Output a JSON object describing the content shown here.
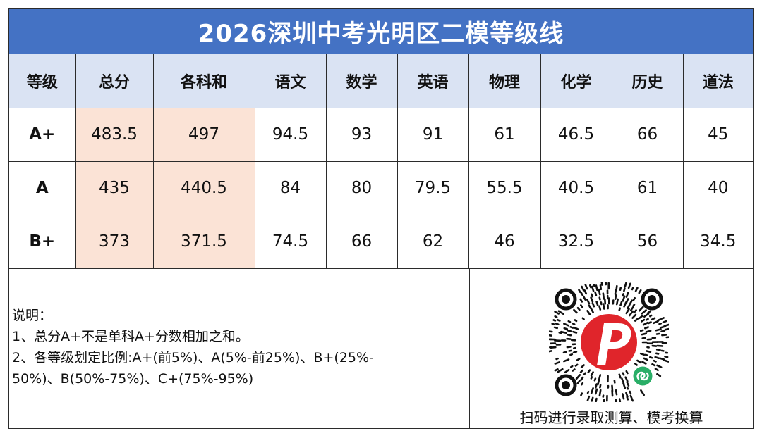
{
  "title": "2026深圳中考光明区二模等级线",
  "table": {
    "headers": [
      "等级",
      "总分",
      "各科和",
      "语文",
      "数学",
      "英语",
      "物理",
      "化学",
      "历史",
      "道法"
    ],
    "rows": [
      [
        "A+",
        "483.5",
        "497",
        "94.5",
        "93",
        "91",
        "61",
        "46.5",
        "66",
        "45"
      ],
      [
        "A",
        "435",
        "440.5",
        "84",
        "80",
        "79.5",
        "55.5",
        "40.5",
        "61",
        "40"
      ],
      [
        "B+",
        "373",
        "371.5",
        "74.5",
        "66",
        "62",
        "46",
        "32.5",
        "56",
        "34.5"
      ]
    ]
  },
  "notes": {
    "heading": "说明：",
    "line1": "1、总分A+不是单科A+分数相加之和。",
    "line2a": "2、各等级划定比例:A+(前5%)、A(5%-前25%)、B+(25%-",
    "line2b": "50%)、B(50%-75%)、C+(75%-95%)"
  },
  "qr": {
    "caption": "扫码进行录取测算、模考换算",
    "icon": "mini-program-qr-code-icon"
  },
  "colors": {
    "title_bg": "#4472c4",
    "header_bg": "#dae3f3",
    "highlight_bg": "#fbe3d6",
    "logo_red": "#e0252b",
    "badge_green": "#2aae67"
  }
}
